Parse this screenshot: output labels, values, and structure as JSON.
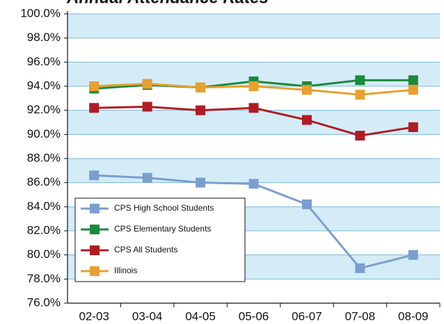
{
  "chart_data": {
    "type": "line",
    "title": "Annual Attendance Rates",
    "categories": [
      "02-03",
      "03-04",
      "04-05",
      "05-06",
      "06-07",
      "07-08",
      "08-09"
    ],
    "series": [
      {
        "name": "CPS High School Students",
        "color": "#7a9fcf",
        "values": [
          86.6,
          86.4,
          86.0,
          85.9,
          84.2,
          78.9,
          80.0
        ]
      },
      {
        "name": "CPS Elementary Students",
        "color": "#1a8a3c",
        "values": [
          93.8,
          94.1,
          93.9,
          94.4,
          94.0,
          94.5,
          94.5
        ]
      },
      {
        "name": "CPS All Students",
        "color": "#b01c24",
        "values": [
          92.2,
          92.3,
          92.0,
          92.2,
          91.2,
          89.9,
          90.6
        ]
      },
      {
        "name": "Illinois",
        "color": "#e8a030",
        "values": [
          94.0,
          94.2,
          93.9,
          94.0,
          93.7,
          93.3,
          93.7
        ]
      }
    ],
    "ylim": [
      76,
      100
    ],
    "yticks": [
      {
        "value": 76,
        "label": "76.0%"
      },
      {
        "value": 78,
        "label": "78.0%"
      },
      {
        "value": 80,
        "label": "80.0%"
      },
      {
        "value": 82,
        "label": "82.0%"
      },
      {
        "value": 84,
        "label": "84.0%"
      },
      {
        "value": 86,
        "label": "86.0%"
      },
      {
        "value": 88,
        "label": "88.0%"
      },
      {
        "value": 90,
        "label": "90.0%"
      },
      {
        "value": 92,
        "label": "92.0%"
      },
      {
        "value": 94,
        "label": "94.0%"
      },
      {
        "value": 96,
        "label": "96.0%"
      },
      {
        "value": 98,
        "label": "98.0%"
      },
      {
        "value": 100,
        "label": "100.0%"
      }
    ],
    "grid": true,
    "legend": "lower left"
  }
}
